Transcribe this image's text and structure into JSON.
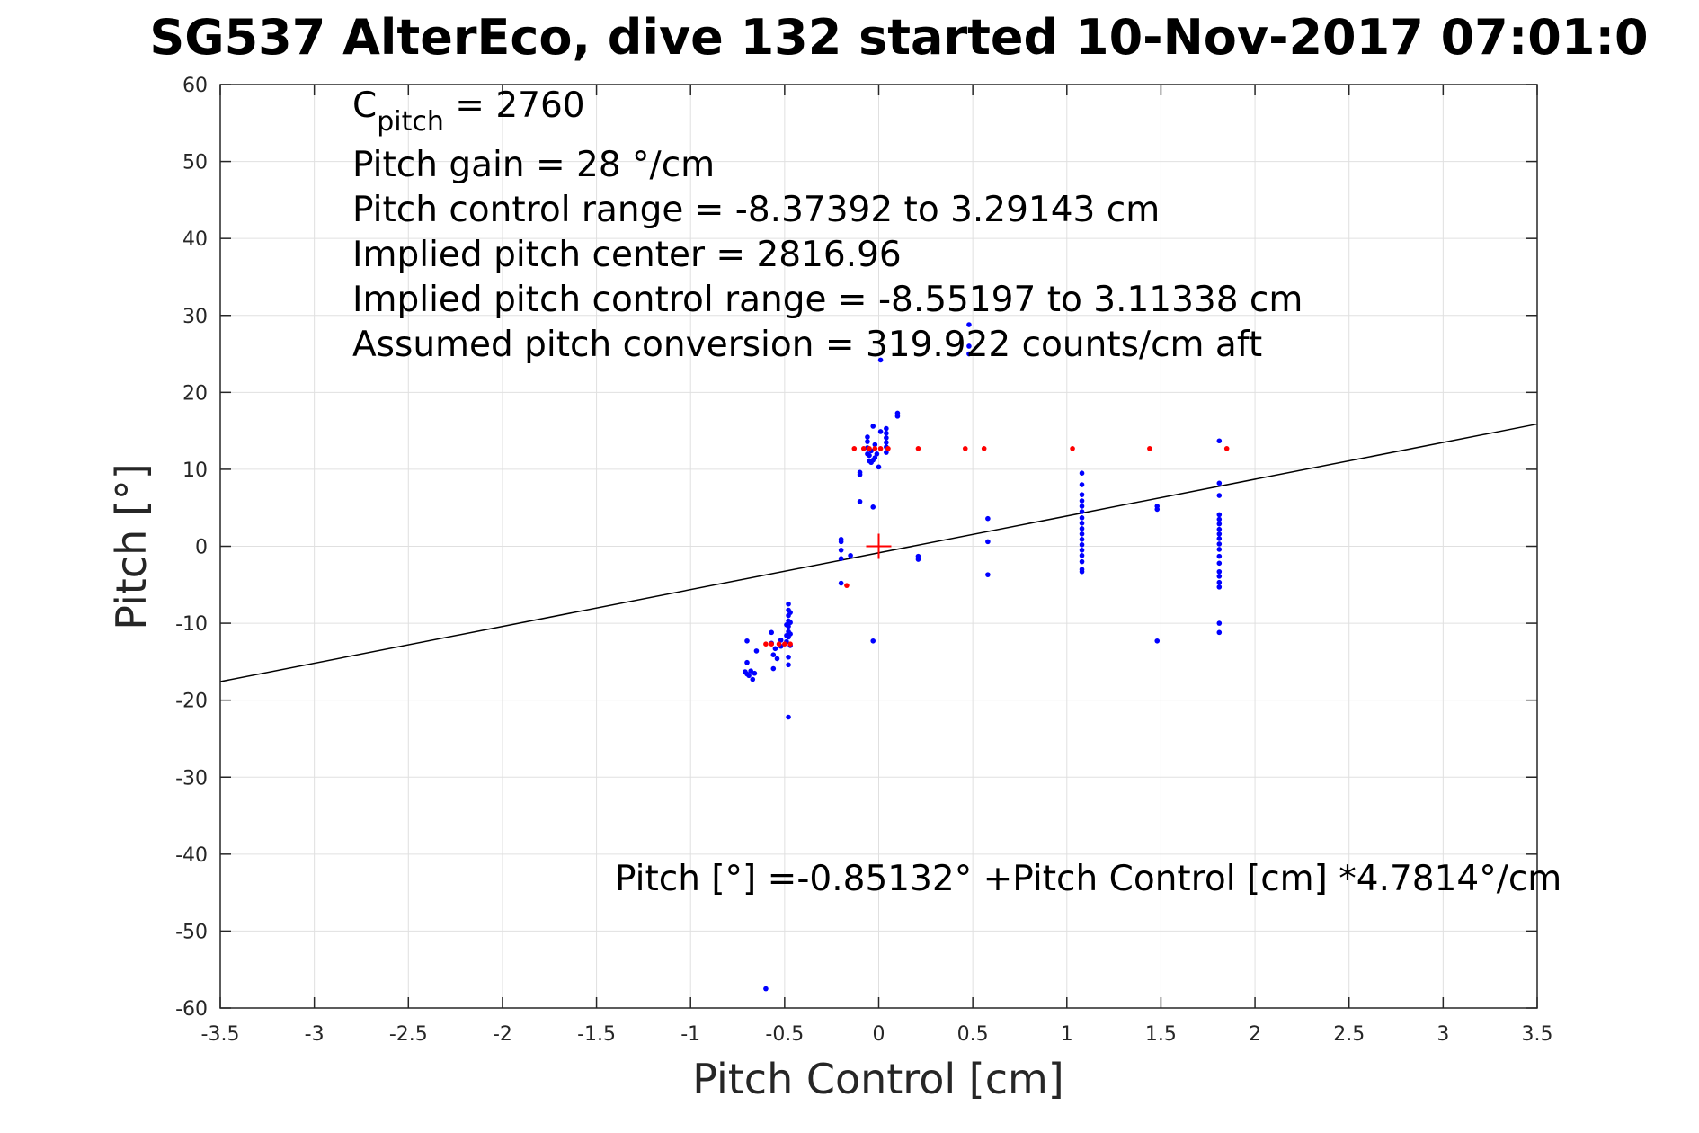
{
  "chart_data": {
    "type": "scatter",
    "title": "SG537 AlterEco, dive 132 started 10-Nov-2017 07:01:0",
    "xlabel": "Pitch Control [cm]",
    "ylabel": "Pitch [°]",
    "xlim": [
      -3.5,
      3.5
    ],
    "ylim": [
      -60,
      60
    ],
    "xticks": [
      -3.5,
      -3,
      -2.5,
      -2,
      -1.5,
      -1,
      -0.5,
      0,
      0.5,
      1,
      1.5,
      2,
      2.5,
      3,
      3.5
    ],
    "xtick_labels": [
      "-3.5",
      "-3",
      "-2.5",
      "-2",
      "-1.5",
      "-1",
      "-0.5",
      "0",
      "0.5",
      "1",
      "1.5",
      "2",
      "2.5",
      "3",
      "3.5"
    ],
    "yticks": [
      -60,
      -50,
      -40,
      -30,
      -20,
      -10,
      0,
      10,
      20,
      30,
      40,
      50,
      60
    ],
    "ytick_labels": [
      "-60",
      "-50",
      "-40",
      "-30",
      "-20",
      "-10",
      "0",
      "10",
      "20",
      "30",
      "40",
      "50",
      "60"
    ],
    "grid": true,
    "colors": {
      "primary_points": "#0000ff",
      "secondary_points": "#ff0000",
      "fit_line": "#000000",
      "grid": "#e0e0e0",
      "axes": "#262626"
    },
    "annotations": {
      "c_pitch": {
        "prefix": "C",
        "subscript": "pitch",
        "suffix": " = 2760"
      },
      "lines": [
        "Pitch gain = 28 °/cm",
        "Pitch control range = -8.37392 to 3.29143 cm",
        "Implied pitch center = 2816.96",
        "Implied pitch control range = -8.55197 to 3.11338 cm",
        "Assumed pitch conversion = 319.922 counts/cm aft"
      ],
      "fit_equation": "Pitch [°] =-0.85132° +Pitch Control [cm] *4.7814°/cm"
    },
    "fit_line": {
      "intercept": -0.85132,
      "slope": 4.7814
    },
    "center_marker": {
      "x": 0,
      "y": 0
    },
    "series": [
      {
        "marker": "dot",
        "color": "#0000ff",
        "points": [
          [
            -0.7,
            -12.3
          ],
          [
            -0.7,
            -15.1
          ],
          [
            -0.71,
            -16.3
          ],
          [
            -0.7,
            -16.6
          ],
          [
            -0.69,
            -16.8
          ],
          [
            -0.68,
            -16.2
          ],
          [
            -0.67,
            -17.3
          ],
          [
            -0.66,
            -16.5
          ],
          [
            -0.65,
            -13.6
          ],
          [
            -0.6,
            -57.5
          ],
          [
            -0.57,
            -11.2
          ],
          [
            -0.57,
            -12.6
          ],
          [
            -0.56,
            -14.1
          ],
          [
            -0.56,
            -15.9
          ],
          [
            -0.55,
            -13.3
          ],
          [
            -0.54,
            -14.6
          ],
          [
            -0.52,
            -13.0
          ],
          [
            -0.52,
            -12.2
          ],
          [
            -0.49,
            -10.2
          ],
          [
            -0.49,
            -11.6
          ],
          [
            -0.49,
            -12.4
          ],
          [
            -0.48,
            -7.5
          ],
          [
            -0.48,
            -8.3
          ],
          [
            -0.48,
            -9.0
          ],
          [
            -0.48,
            -9.7
          ],
          [
            -0.48,
            -10.4
          ],
          [
            -0.48,
            -11.1
          ],
          [
            -0.48,
            -11.8
          ],
          [
            -0.48,
            -14.4
          ],
          [
            -0.48,
            -15.4
          ],
          [
            -0.48,
            -22.2
          ],
          [
            -0.47,
            -8.6
          ],
          [
            -0.47,
            -9.9
          ],
          [
            -0.47,
            -11.4
          ],
          [
            -0.47,
            -12.9
          ],
          [
            -0.2,
            0.9
          ],
          [
            -0.2,
            0.6
          ],
          [
            -0.2,
            -0.5
          ],
          [
            -0.2,
            -1.6
          ],
          [
            -0.2,
            -4.8
          ],
          [
            -0.15,
            -1.2
          ],
          [
            -0.1,
            9.3
          ],
          [
            -0.1,
            9.6
          ],
          [
            -0.1,
            5.8
          ],
          [
            -0.06,
            12.0
          ],
          [
            -0.06,
            12.8
          ],
          [
            -0.06,
            13.6
          ],
          [
            -0.06,
            14.2
          ],
          [
            -0.05,
            11.1
          ],
          [
            -0.05,
            11.8
          ],
          [
            -0.04,
            10.9
          ],
          [
            -0.04,
            12.4
          ],
          [
            -0.03,
            11.2
          ],
          [
            -0.03,
            15.6
          ],
          [
            -0.03,
            5.1
          ],
          [
            -0.03,
            -12.3
          ],
          [
            -0.02,
            11.5
          ],
          [
            -0.02,
            13.2
          ],
          [
            -0.01,
            12.0
          ],
          [
            0.0,
            10.3
          ],
          [
            0.01,
            24.2
          ],
          [
            0.01,
            14.9
          ],
          [
            0.04,
            12.2
          ],
          [
            0.04,
            12.9
          ],
          [
            0.04,
            13.5
          ],
          [
            0.04,
            14.1
          ],
          [
            0.04,
            14.7
          ],
          [
            0.04,
            15.3
          ],
          [
            0.1,
            16.9
          ],
          [
            0.1,
            17.3
          ],
          [
            0.21,
            -1.3
          ],
          [
            0.21,
            -1.7
          ],
          [
            0.48,
            28.8
          ],
          [
            0.48,
            26.0
          ],
          [
            0.48,
            25.0
          ],
          [
            0.58,
            3.6
          ],
          [
            0.58,
            0.6
          ],
          [
            0.58,
            -3.7
          ],
          [
            1.08,
            9.5
          ],
          [
            1.08,
            8.0
          ],
          [
            1.08,
            6.7
          ],
          [
            1.08,
            5.9
          ],
          [
            1.08,
            5.2
          ],
          [
            1.08,
            4.5
          ],
          [
            1.08,
            3.7
          ],
          [
            1.08,
            3.0
          ],
          [
            1.08,
            2.3
          ],
          [
            1.08,
            1.6
          ],
          [
            1.08,
            0.9
          ],
          [
            1.08,
            0.2
          ],
          [
            1.08,
            -0.5
          ],
          [
            1.08,
            -1.2
          ],
          [
            1.08,
            -2.0
          ],
          [
            1.08,
            -3.0
          ],
          [
            1.08,
            -3.3
          ],
          [
            1.48,
            5.2
          ],
          [
            1.48,
            4.8
          ],
          [
            1.48,
            -12.3
          ],
          [
            1.81,
            13.7
          ],
          [
            1.81,
            8.2
          ],
          [
            1.81,
            6.6
          ],
          [
            1.81,
            4.1
          ],
          [
            1.81,
            3.5
          ],
          [
            1.81,
            2.9
          ],
          [
            1.81,
            2.2
          ],
          [
            1.81,
            1.6
          ],
          [
            1.81,
            1.0
          ],
          [
            1.81,
            0.3
          ],
          [
            1.81,
            -0.4
          ],
          [
            1.81,
            -1.3
          ],
          [
            1.81,
            -2.2
          ],
          [
            1.81,
            -3.3
          ],
          [
            1.81,
            -3.9
          ],
          [
            1.81,
            -4.7
          ],
          [
            1.81,
            -5.3
          ],
          [
            1.81,
            -10.0
          ],
          [
            1.81,
            -11.2
          ]
        ]
      },
      {
        "marker": "dot",
        "color": "#ff0000",
        "points": [
          [
            -0.6,
            -12.7
          ],
          [
            -0.57,
            -12.7
          ],
          [
            -0.53,
            -12.7
          ],
          [
            -0.5,
            -12.7
          ],
          [
            -0.47,
            -12.7
          ],
          [
            -0.17,
            -5.1
          ],
          [
            -0.13,
            12.7
          ],
          [
            -0.08,
            12.7
          ],
          [
            -0.05,
            12.7
          ],
          [
            -0.02,
            12.7
          ],
          [
            0.01,
            12.7
          ],
          [
            0.05,
            12.7
          ],
          [
            0.21,
            12.7
          ],
          [
            0.46,
            12.7
          ],
          [
            0.56,
            12.7
          ],
          [
            1.03,
            12.7
          ],
          [
            1.44,
            12.7
          ],
          [
            1.85,
            12.7
          ]
        ]
      }
    ]
  }
}
